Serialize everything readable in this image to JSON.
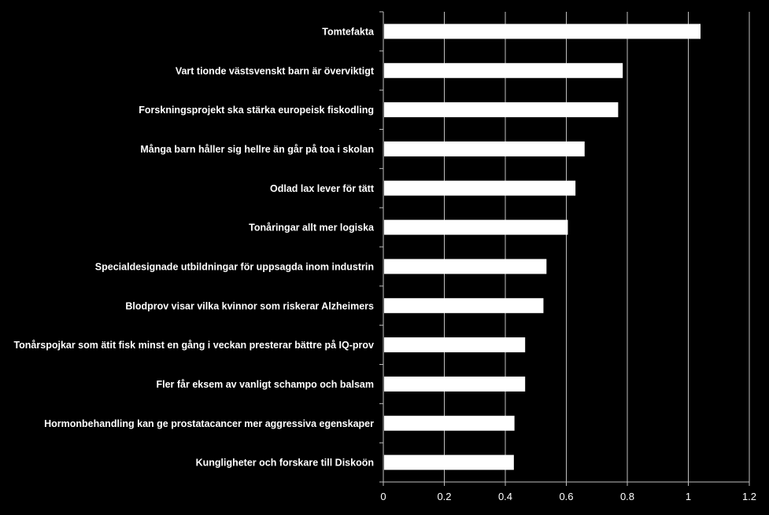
{
  "chart_data": {
    "type": "bar",
    "orientation": "horizontal",
    "categories": [
      "Tomtefakta",
      "Vart tionde västsvenskt barn är överviktigt",
      "Forskningsprojekt ska stärka europeisk fiskodling",
      "Många barn håller sig hellre än går på toa i skolan",
      "Odlad lax lever för tätt",
      "Tonåringar allt mer logiska",
      "Specialdesignade utbildningar för uppsagda inom industrin",
      "Blodprov visar vilka kvinnor som riskerar Alzheimers",
      "Tonårspojkar som ätit fisk minst en gång i veckan presterar bättre på IQ-prov",
      "Fler får eksem av vanligt schampo och balsam",
      "Hormonbehandling kan ge prostatacancer mer aggressiva egenskaper",
      "Kungligheter och forskare till Diskoön"
    ],
    "values": [
      1.04,
      0.785,
      0.77,
      0.66,
      0.63,
      0.605,
      0.535,
      0.525,
      0.465,
      0.465,
      0.43,
      0.428
    ],
    "xlim": [
      0,
      1.2
    ],
    "xticks": [
      "0",
      "0.2",
      "0.4",
      "0.6",
      "0.8",
      "1",
      "1.2"
    ],
    "grid": true,
    "bar_color": "#ffffff",
    "background": "#000000",
    "grid_color": "#bfbfbf"
  }
}
